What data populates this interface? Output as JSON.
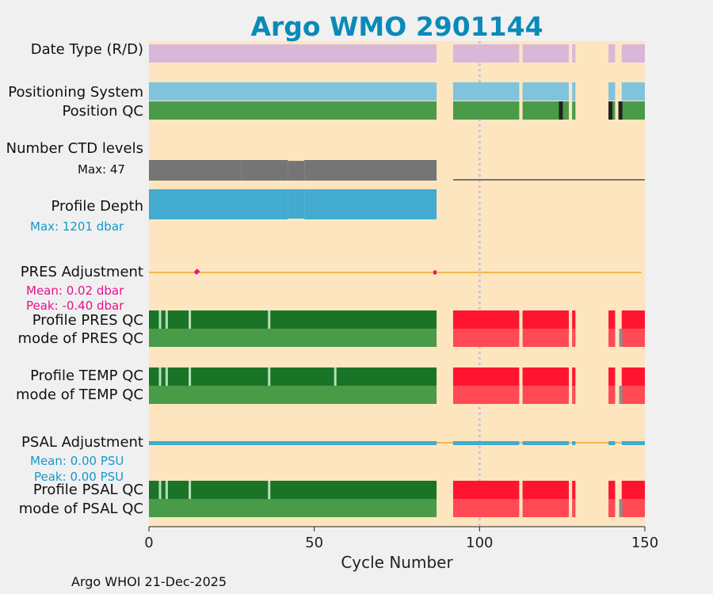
{
  "chart_data": {
    "type": "bar",
    "title": "Argo WMO 2901144",
    "xlabel": "Cycle Number",
    "xlim": [
      0,
      150
    ],
    "xticks": [
      "0",
      "50",
      "100",
      "150"
    ],
    "dotted_reference_cycle": 100,
    "row_labels": {
      "date_type": "Date Type (R/D)",
      "positioning_system": "Positioning System",
      "position_qc": "Position QC",
      "ctd_levels": "Number CTD levels",
      "profile_depth": "Profile Depth",
      "pres_adjustment": "PRES Adjustment",
      "profile_pres_qc": "Profile PRES QC",
      "mode_pres_qc": "mode of PRES QC",
      "profile_temp_qc": "Profile TEMP QC",
      "mode_temp_qc": "mode of TEMP QC",
      "psal_adjustment": "PSAL Adjustment",
      "profile_psal_qc": "Profile PSAL QC",
      "mode_psal_qc": "mode of PSAL QC"
    },
    "stats": {
      "ctd_max": "Max: 47",
      "depth_max": "Max: 1201 dbar",
      "pres_mean": "Mean: 0.02 dbar",
      "pres_peak": "Peak: -0.40 dbar",
      "psal_mean": "Mean: 0.00 PSU",
      "psal_peak": "Peak: 0.00 PSU"
    },
    "data_segments": [
      [
        0,
        87
      ],
      [
        92,
        112
      ],
      [
        113,
        127
      ],
      [
        128,
        129
      ],
      [
        139,
        141
      ],
      [
        143,
        150
      ]
    ],
    "position_qc_flag_cycles": [
      124,
      139,
      142
    ],
    "missing_profile_qc_cycles": [
      3,
      5,
      12,
      36
    ],
    "missing_temp_qc_cycles": [
      3,
      5,
      12,
      36,
      56
    ],
    "grey_mode_qc_cycle": 142,
    "ctd_levels": [
      {
        "from": 0,
        "to": 28,
        "value": 47
      },
      {
        "from": 28,
        "to": 42,
        "value": 47
      },
      {
        "from": 42,
        "to": 47,
        "value": 45
      },
      {
        "from": 47,
        "to": 87,
        "value": 47
      },
      {
        "from": 92,
        "to": 150,
        "value": 2
      }
    ],
    "profile_depth": [
      {
        "from": 0,
        "to": 42,
        "value": 1201
      },
      {
        "from": 42,
        "to": 47,
        "value": 1170
      },
      {
        "from": 47,
        "to": 87,
        "value": 1201
      }
    ],
    "pres_adjustment": [
      {
        "x": 1,
        "y": 0.1
      },
      {
        "x": 3,
        "y": 0.0
      },
      {
        "x": 5,
        "y": 0.05
      },
      {
        "x": 8,
        "y": -0.05
      },
      {
        "x": 10,
        "y": 0.0
      },
      {
        "x": 12,
        "y": 0.1
      },
      {
        "x": 14,
        "y": -0.05
      },
      {
        "x": 15,
        "y": 0.12
      },
      {
        "x": 17,
        "y": -0.1
      },
      {
        "x": 20,
        "y": 0.0
      },
      {
        "x": 24,
        "y": 0.0
      },
      {
        "x": 27,
        "y": -0.05
      },
      {
        "x": 29,
        "y": -0.1
      },
      {
        "x": 31,
        "y": 0.0
      },
      {
        "x": 33,
        "y": -0.1
      },
      {
        "x": 35,
        "y": 0.0
      },
      {
        "x": 38,
        "y": -0.05
      },
      {
        "x": 42,
        "y": -0.05
      },
      {
        "x": 45,
        "y": -0.1
      },
      {
        "x": 48,
        "y": -0.15
      },
      {
        "x": 50,
        "y": -0.12
      },
      {
        "x": 53,
        "y": -0.08
      },
      {
        "x": 57,
        "y": -0.05
      },
      {
        "x": 60,
        "y": -0.1
      },
      {
        "x": 64,
        "y": -0.08
      },
      {
        "x": 68,
        "y": -0.15
      },
      {
        "x": 70,
        "y": -0.4
      },
      {
        "x": 72,
        "y": -0.1
      },
      {
        "x": 74,
        "y": -0.12
      },
      {
        "x": 77,
        "y": -0.05
      },
      {
        "x": 80,
        "y": -0.1
      },
      {
        "x": 82,
        "y": -0.05
      },
      {
        "x": 84,
        "y": -0.08
      },
      {
        "x": 86,
        "y": 0.0
      },
      {
        "x": 87,
        "y": 0.0
      },
      {
        "x": 93,
        "y": 0.3
      },
      {
        "x": 112,
        "y": 0.3
      },
      {
        "x": 114,
        "y": 0.3
      },
      {
        "x": 127,
        "y": 0.3
      },
      {
        "x": 140,
        "y": 0.3
      },
      {
        "x": 144,
        "y": 0.3
      },
      {
        "x": 149,
        "y": 0.3
      }
    ],
    "psal_adjustment": {
      "mean": 0.0,
      "peak": 0.0
    }
  },
  "credit": "Argo WHOI 21-Dec-2025",
  "colors": {
    "title": "#0a8ab8",
    "plot_bg": "#fde6bf",
    "date_type": "#d9b7d9",
    "positioning": "#7fc3dd",
    "qc_good": "#4a9b48",
    "qc_profile_good": "#1a7428",
    "qc_profile_bad": "#ff1530",
    "qc_mode_bad": "#ff4a55",
    "qc_flag": "#222222",
    "ctd": "#757575",
    "depth": "#43aad0",
    "pres": "#e6118c",
    "psal": "#43aad0",
    "zero_line": "#f2b84e",
    "stat_blue": "#1598c9",
    "stat_pink": "#e6118c",
    "grey_mode": "#8c8c8c",
    "gap_line": "#b6e0b8"
  }
}
